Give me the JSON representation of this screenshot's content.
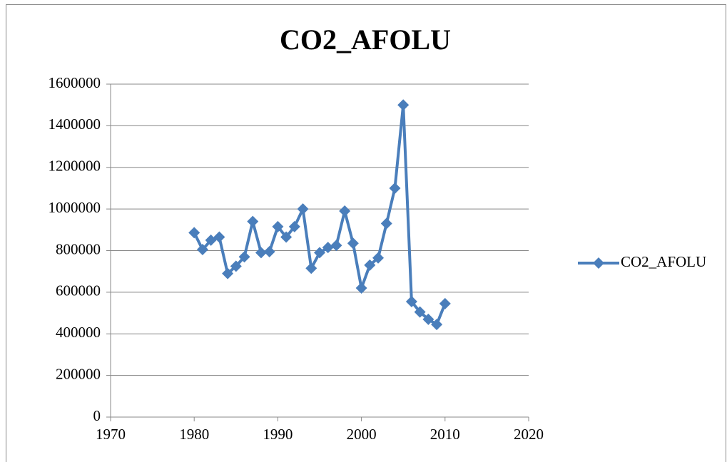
{
  "chart_data": {
    "type": "line",
    "title": "CO2_AFOLU",
    "x": [
      1980,
      1981,
      1982,
      1983,
      1984,
      1985,
      1986,
      1987,
      1988,
      1989,
      1990,
      1991,
      1992,
      1993,
      1994,
      1995,
      1996,
      1997,
      1998,
      1999,
      2000,
      2001,
      2002,
      2003,
      2004,
      2005,
      2006,
      2007,
      2008,
      2009,
      2010
    ],
    "series": [
      {
        "name": "CO2_AFOLU",
        "color": "#4a7ebb",
        "values": [
          886000,
          805000,
          850000,
          865000,
          690000,
          725000,
          770000,
          940000,
          790000,
          795000,
          915000,
          865000,
          915000,
          1000000,
          715000,
          790000,
          815000,
          825000,
          990000,
          835000,
          620000,
          730000,
          765000,
          930000,
          1100000,
          1500000,
          555000,
          505000,
          470000,
          445000,
          545000
        ]
      }
    ],
    "xlim": [
      1970,
      2020
    ],
    "xticks": [
      1970,
      1980,
      1990,
      2000,
      2010,
      2020
    ],
    "ylim": [
      0,
      1600000
    ],
    "yticks": [
      0,
      200000,
      400000,
      600000,
      800000,
      1000000,
      1200000,
      1400000,
      1600000
    ],
    "grid": true,
    "legend": "right"
  }
}
